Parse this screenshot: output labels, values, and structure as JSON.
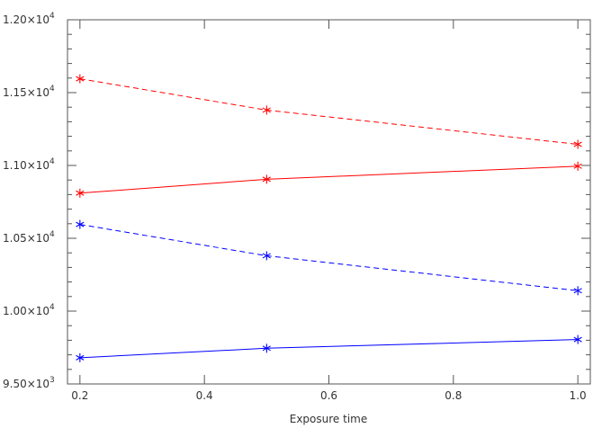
{
  "chart_data": {
    "type": "line",
    "title": "",
    "xlabel": "Exposure time",
    "ylabel": "",
    "xlim": [
      0.18,
      1.02
    ],
    "ylim": [
      9500,
      12000
    ],
    "x_ticks": [
      {
        "value": 0.2,
        "label": "0.2"
      },
      {
        "value": 0.4,
        "label": "0.4"
      },
      {
        "value": 0.6,
        "label": "0.6"
      },
      {
        "value": 0.8,
        "label": "0.8"
      },
      {
        "value": 1.0,
        "label": "1.0"
      }
    ],
    "y_ticks": [
      {
        "value": 9500,
        "mantissa": "9.50",
        "times": "×10",
        "exponent": "3"
      },
      {
        "value": 10000,
        "mantissa": "1.00",
        "times": "×10",
        "exponent": "4"
      },
      {
        "value": 10500,
        "mantissa": "1.05",
        "times": "×10",
        "exponent": "4"
      },
      {
        "value": 11000,
        "mantissa": "1.10",
        "times": "×10",
        "exponent": "4"
      },
      {
        "value": 11500,
        "mantissa": "1.15",
        "times": "×10",
        "exponent": "4"
      },
      {
        "value": 12000,
        "mantissa": "1.20",
        "times": "×10",
        "exponent": "4"
      }
    ],
    "x_minor_step": 0.05,
    "y_minor_step": 100,
    "grid": false,
    "legend": "none",
    "marker": "asterisk",
    "series": [
      {
        "color": "#ff0000",
        "dash": true,
        "x": [
          0.2,
          0.5,
          1.0
        ],
        "y": [
          11595,
          11380,
          11145
        ]
      },
      {
        "color": "#ff0000",
        "dash": false,
        "x": [
          0.2,
          0.5,
          1.0
        ],
        "y": [
          10810,
          10905,
          10995
        ]
      },
      {
        "color": "#0000ff",
        "dash": true,
        "x": [
          0.2,
          0.5,
          1.0
        ],
        "y": [
          10595,
          10380,
          10140
        ]
      },
      {
        "color": "#0000ff",
        "dash": false,
        "x": [
          0.2,
          0.5,
          1.0
        ],
        "y": [
          9680,
          9745,
          9805
        ]
      }
    ]
  }
}
